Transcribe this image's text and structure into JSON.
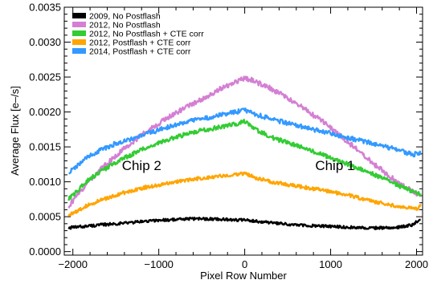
{
  "chart_data": {
    "type": "line",
    "title": "",
    "xlabel": "Pixel Row Number",
    "ylabel": "Average Flux [e–/s]",
    "xlim": [
      -2100,
      2070
    ],
    "ylim": [
      -5e-05,
      0.0035
    ],
    "x_ticks": [
      {
        "value": -2000,
        "label": "−2000"
      },
      {
        "value": -1000,
        "label": "−1000"
      },
      {
        "value": 0,
        "label": "0"
      },
      {
        "value": 1000,
        "label": "1000"
      },
      {
        "value": 2000,
        "label": "2000"
      }
    ],
    "y_ticks": [
      {
        "value": 0,
        "label": "0.0000"
      },
      {
        "value": 0.0005,
        "label": "0.0005"
      },
      {
        "value": 0.001,
        "label": "0.0010"
      },
      {
        "value": 0.0015,
        "label": "0.0015"
      },
      {
        "value": 0.002,
        "label": "0.0020"
      },
      {
        "value": 0.0025,
        "label": "0.0025"
      },
      {
        "value": 0.003,
        "label": "0.0030"
      },
      {
        "value": 0.0035,
        "label": "0.0035"
      }
    ],
    "grid": false,
    "legend_position": "top-left",
    "annotations": [
      {
        "text": "Chip 2",
        "x": -1200,
        "y": 0.00117
      },
      {
        "text": "Chip 1",
        "x": 1050,
        "y": 0.00117
      }
    ],
    "series": [
      {
        "name": "2009, No Postflash",
        "color": "#000000",
        "x": [
          -2048,
          -1800,
          -1500,
          -1200,
          -1000,
          -800,
          -600,
          -400,
          -200,
          0,
          200,
          400,
          600,
          800,
          1000,
          1200,
          1400,
          1600,
          1800,
          1950,
          2048
        ],
        "y": [
          0.00034,
          0.00037,
          0.0004,
          0.00043,
          0.00045,
          0.00046,
          0.00047,
          0.00047,
          0.00046,
          0.00045,
          0.00043,
          0.0004,
          0.00038,
          0.00037,
          0.00036,
          0.00035,
          0.00034,
          0.00034,
          0.00035,
          0.00038,
          0.00047
        ]
      },
      {
        "name": "2012, No Postflash",
        "color": "#d47fd4",
        "x": [
          -2048,
          -1800,
          -1500,
          -1200,
          -900,
          -600,
          -300,
          -100,
          0,
          100,
          300,
          600,
          900,
          1200,
          1500,
          1800,
          2000,
          2048
        ],
        "y": [
          0.00065,
          0.00103,
          0.00138,
          0.00167,
          0.00192,
          0.00212,
          0.00232,
          0.00244,
          0.00248,
          0.00245,
          0.00234,
          0.00212,
          0.00187,
          0.00157,
          0.00126,
          0.00097,
          0.00083,
          0.00079
        ]
      },
      {
        "name": "2012, No Postflash + CTE corr",
        "color": "#33cc33",
        "x": [
          -2048,
          -1800,
          -1500,
          -1200,
          -900,
          -600,
          -300,
          -100,
          0,
          100,
          300,
          600,
          900,
          1200,
          1500,
          1800,
          2000,
          2048
        ],
        "y": [
          0.00075,
          0.00105,
          0.00128,
          0.00146,
          0.0016,
          0.00171,
          0.00178,
          0.00183,
          0.00187,
          0.00177,
          0.00164,
          0.00152,
          0.00139,
          0.00125,
          0.00111,
          0.00094,
          0.00083,
          0.00082
        ]
      },
      {
        "name": "2012, Postflash + CTE corr",
        "color": "#ffa500",
        "x": [
          -2048,
          -1800,
          -1500,
          -1200,
          -900,
          -600,
          -300,
          -100,
          0,
          100,
          300,
          600,
          900,
          1200,
          1500,
          1800,
          2000,
          2048
        ],
        "y": [
          0.00052,
          0.00068,
          0.00081,
          0.00091,
          0.00098,
          0.00104,
          0.00108,
          0.00111,
          0.00112,
          0.00107,
          0.001,
          0.00094,
          0.00088,
          0.00081,
          0.00072,
          0.00064,
          0.00061,
          0.00066
        ]
      },
      {
        "name": "2014, Postflash + CTE corr",
        "color": "#3399ff",
        "x": [
          -2048,
          -1800,
          -1500,
          -1200,
          -900,
          -600,
          -300,
          -100,
          0,
          100,
          300,
          600,
          900,
          1200,
          1500,
          1800,
          1950,
          2048
        ],
        "y": [
          0.00113,
          0.00138,
          0.00155,
          0.00166,
          0.00178,
          0.00188,
          0.00195,
          0.002,
          0.00203,
          0.00198,
          0.0019,
          0.00181,
          0.00172,
          0.00163,
          0.00155,
          0.00145,
          0.00139,
          0.00141
        ]
      }
    ]
  }
}
